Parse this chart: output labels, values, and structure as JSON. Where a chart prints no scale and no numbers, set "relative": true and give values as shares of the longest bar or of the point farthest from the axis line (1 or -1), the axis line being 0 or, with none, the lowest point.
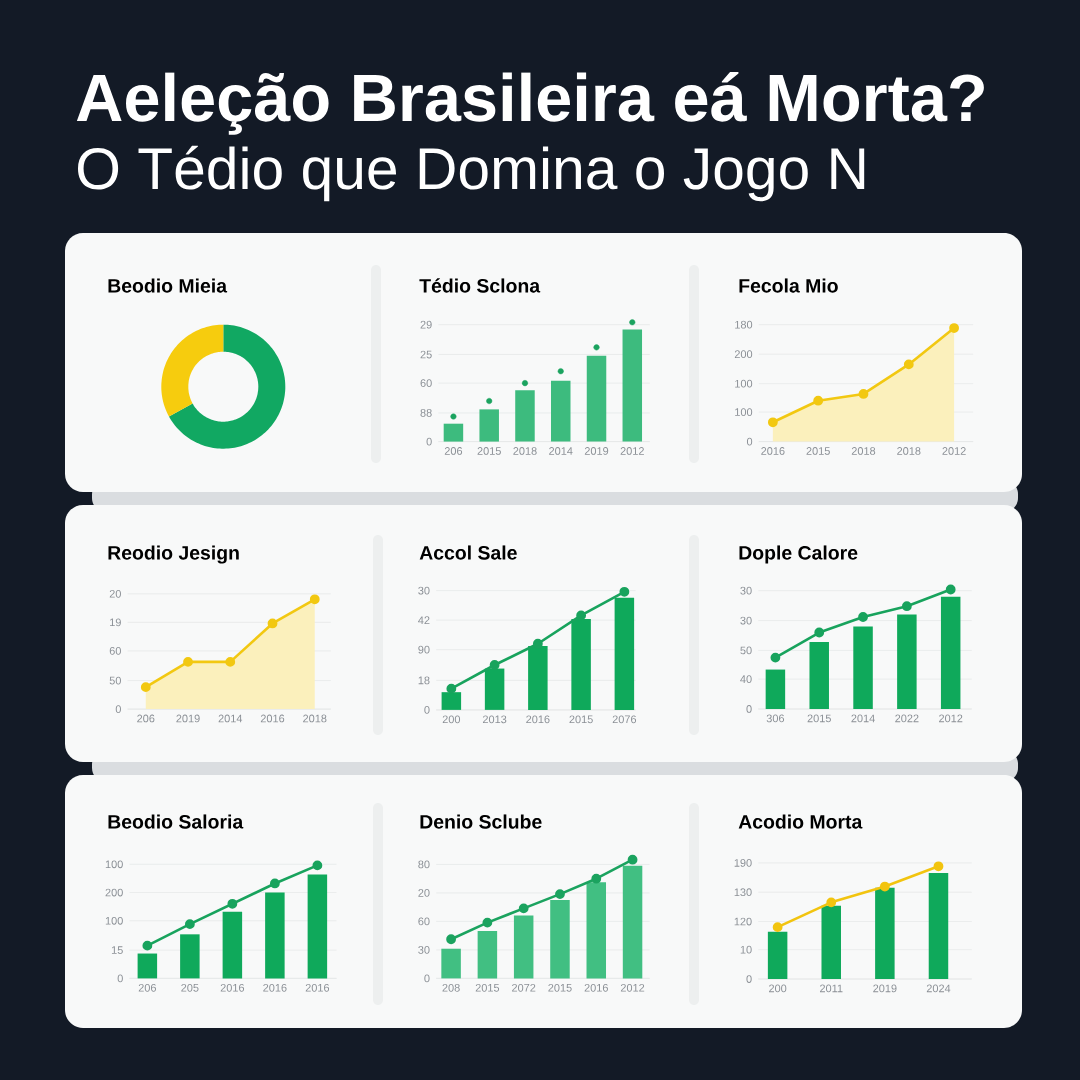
{
  "chart_data": [
    {
      "type": "other",
      "title": "Aeleção Brasileira eá Morta?",
      "subtitle": "O Tédio que Domina o Jogo N"
    },
    {
      "type": "donut",
      "title": "Beodio Mieia",
      "categories": [
        null,
        null
      ],
      "values": [
        67,
        33
      ],
      "colors": [
        "#11a862",
        "#f6cc0e"
      ]
    },
    {
      "type": "bar",
      "title": "Tédio Sclona",
      "relative": true,
      "categories": [
        "206",
        "2015",
        "2018",
        "2014",
        "2019",
        "2012"
      ],
      "series": [
        {
          "type": "bar",
          "color": "#3dbb7e",
          "values": [
            0.15,
            0.27,
            0.43,
            0.51,
            0.72,
            0.94
          ]
        },
        {
          "type": "scatter",
          "color": "#1ba35f",
          "values": [
            0.21,
            0.34,
            0.49,
            0.59,
            0.79,
            1
          ]
        }
      ],
      "ref_lines": [
        {
          "axis": "y",
          "value": 0.98
        },
        {
          "axis": "y",
          "value": 0.73
        },
        {
          "axis": "y",
          "value": 0.49
        },
        {
          "axis": "y",
          "value": 0.24
        },
        {
          "axis": "y",
          "value": 0
        }
      ],
      "annotations": [
        "29",
        "25",
        "60",
        "88",
        "0"
      ],
      "marker": "circle"
    },
    {
      "type": "area",
      "title": "Fecola Mio",
      "relative": true,
      "categories": [
        "2016",
        "2015",
        "2018",
        "2018",
        "2012"
      ],
      "values": [
        0.17,
        0.36,
        0.42,
        0.68,
        1
      ],
      "color": "#f2c811",
      "ref_lines": [
        {
          "axis": "y",
          "value": 1.03
        },
        {
          "axis": "y",
          "value": 0.77
        },
        {
          "axis": "y",
          "value": 0.51
        },
        {
          "axis": "y",
          "value": 0.26
        },
        {
          "axis": "y",
          "value": 0
        }
      ],
      "annotations": [
        "180",
        "200",
        "100",
        "100",
        "0"
      ],
      "marker": "circle"
    },
    {
      "type": "area",
      "title": "Reodio Jesign",
      "relative": true,
      "categories": [
        "206",
        "2019",
        "2014",
        "2016",
        "2018"
      ],
      "values": [
        0.2,
        0.43,
        0.43,
        0.78,
        1
      ],
      "color": "#f2c811",
      "ref_lines": [
        {
          "axis": "y",
          "value": 1.05
        },
        {
          "axis": "y",
          "value": 0.79
        },
        {
          "axis": "y",
          "value": 0.53
        },
        {
          "axis": "y",
          "value": 0.26
        },
        {
          "axis": "y",
          "value": 0
        }
      ],
      "annotations": [
        "20",
        "19",
        "60",
        "50",
        "0"
      ],
      "marker": "circle"
    },
    {
      "type": "bar",
      "title": "Accol Sale",
      "relative": true,
      "categories": [
        "200",
        "2013",
        "2016",
        "2015",
        "2076"
      ],
      "series": [
        {
          "type": "bar",
          "color": "#0fa95b",
          "values": [
            0.15,
            0.35,
            0.54,
            0.77,
            0.95
          ]
        },
        {
          "type": "line",
          "color": "#18a35d",
          "values": [
            0.18,
            0.38,
            0.56,
            0.8,
            1
          ]
        }
      ],
      "ref_lines": [
        {
          "axis": "y",
          "value": 1.01
        },
        {
          "axis": "y",
          "value": 0.76
        },
        {
          "axis": "y",
          "value": 0.51
        },
        {
          "axis": "y",
          "value": 0.25
        },
        {
          "axis": "y",
          "value": 0
        }
      ],
      "annotations": [
        "30",
        "42",
        "90",
        "18",
        "0"
      ],
      "marker": "circle"
    },
    {
      "type": "bar",
      "title": "Dople Calore",
      "relative": true,
      "categories": [
        "306",
        "2015",
        "2014",
        "2022",
        "2012"
      ],
      "series": [
        {
          "type": "bar",
          "color": "#0fa95b",
          "values": [
            0.33,
            0.56,
            0.69,
            0.79,
            0.94
          ]
        },
        {
          "type": "line",
          "color": "#18a35d",
          "values": [
            0.43,
            0.64,
            0.77,
            0.86,
            1
          ]
        }
      ],
      "ref_lines": [
        {
          "axis": "y",
          "value": 0.99
        },
        {
          "axis": "y",
          "value": 0.74
        },
        {
          "axis": "y",
          "value": 0.49
        },
        {
          "axis": "y",
          "value": 0.25
        },
        {
          "axis": "y",
          "value": 0
        }
      ],
      "annotations": [
        "30",
        "30",
        "50",
        "40",
        "0"
      ],
      "marker": "circle"
    },
    {
      "type": "bar",
      "title": "Beodio Saloria",
      "relative": true,
      "categories": [
        "206",
        "205",
        "2016",
        "2016",
        "2016"
      ],
      "series": [
        {
          "type": "bar",
          "color": "#0fa95b",
          "values": [
            0.22,
            0.39,
            0.59,
            0.76,
            0.92
          ]
        },
        {
          "type": "line",
          "color": "#18a35d",
          "values": [
            0.29,
            0.48,
            0.66,
            0.84,
            1
          ]
        }
      ],
      "ref_lines": [
        {
          "axis": "y",
          "value": 1.01
        },
        {
          "axis": "y",
          "value": 0.76
        },
        {
          "axis": "y",
          "value": 0.51
        },
        {
          "axis": "y",
          "value": 0.25
        },
        {
          "axis": "y",
          "value": 0
        }
      ],
      "annotations": [
        "100",
        "200",
        "100",
        "15",
        "0"
      ],
      "marker": "circle"
    },
    {
      "type": "bar",
      "title": "Denio Sclube",
      "relative": true,
      "categories": [
        "208",
        "2015",
        "2072",
        "2015",
        "2016",
        "2012"
      ],
      "series": [
        {
          "type": "bar",
          "color": "#41bf82",
          "values": [
            0.25,
            0.4,
            0.53,
            0.66,
            0.81,
            0.95
          ]
        },
        {
          "type": "line",
          "color": "#1ba35f",
          "values": [
            0.33,
            0.47,
            0.59,
            0.71,
            0.84,
            1
          ]
        }
      ],
      "ref_lines": [
        {
          "axis": "y",
          "value": 0.96
        },
        {
          "axis": "y",
          "value": 0.72
        },
        {
          "axis": "y",
          "value": 0.48
        },
        {
          "axis": "y",
          "value": 0.24
        },
        {
          "axis": "y",
          "value": 0
        }
      ],
      "annotations": [
        "80",
        "20",
        "60",
        "30",
        "0"
      ],
      "marker": "circle"
    },
    {
      "type": "bar",
      "title": "Acodio Morta",
      "relative": true,
      "categories": [
        "200",
        "2011",
        "2019",
        "2024"
      ],
      "series": [
        {
          "type": "bar",
          "color": "#0fa95b",
          "values": [
            0.42,
            0.65,
            0.81,
            0.94
          ]
        },
        {
          "type": "line",
          "color": "#f2c40f",
          "values": [
            0.46,
            0.68,
            0.82,
            1
          ]
        }
      ],
      "ref_lines": [
        {
          "axis": "y",
          "value": 1.03
        },
        {
          "axis": "y",
          "value": 0.77
        },
        {
          "axis": "y",
          "value": 0.51
        },
        {
          "axis": "y",
          "value": 0.26
        },
        {
          "axis": "y",
          "value": 0
        }
      ],
      "annotations": [
        "190",
        "130",
        "120",
        "10",
        "0"
      ],
      "marker": "circle"
    }
  ]
}
